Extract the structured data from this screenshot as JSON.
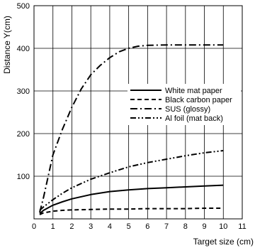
{
  "chart_data": {
    "type": "line",
    "title": "",
    "xlabel": "Target size (cm)",
    "ylabel": "Distance Y(cm)",
    "xlim": [
      0,
      11
    ],
    "ylim": [
      0,
      500
    ],
    "x_ticks": [
      0,
      1,
      2,
      3,
      4,
      5,
      6,
      7,
      8,
      9,
      10,
      11
    ],
    "y_ticks": [
      100,
      200,
      300,
      400,
      500
    ],
    "grid": true,
    "legend_position": "right, middle",
    "series": [
      {
        "name": "White mat paper",
        "style": "solid",
        "x": [
          0.3,
          0.5,
          1,
          1.5,
          2,
          3,
          4,
          5,
          6,
          7,
          8,
          9,
          10
        ],
        "y": [
          12,
          20,
          32,
          40,
          47,
          57,
          64,
          68,
          71,
          73,
          75,
          77,
          79
        ]
      },
      {
        "name": "Black carbon paper",
        "style": "dashed",
        "x": [
          0.3,
          0.5,
          1,
          1.5,
          2,
          3,
          4,
          5,
          6,
          7,
          8,
          9,
          10
        ],
        "y": [
          10,
          14,
          18,
          20,
          21,
          22,
          23,
          23,
          24,
          24,
          24,
          25,
          25
        ]
      },
      {
        "name": "SUS (glossy)",
        "style": "dashdot",
        "x": [
          0.3,
          0.5,
          1,
          1.5,
          2,
          2.5,
          3,
          3.5,
          4,
          4.5,
          5,
          5.5,
          6,
          7,
          8,
          9,
          10
        ],
        "y": [
          15,
          50,
          150,
          210,
          262,
          305,
          338,
          360,
          378,
          392,
          400,
          405,
          407,
          408,
          408,
          408,
          408
        ]
      },
      {
        "name": "Al foil (mat back)",
        "style": "dashdotdot",
        "x": [
          0.3,
          0.5,
          1,
          1.5,
          2,
          3,
          4,
          5,
          6,
          7,
          8,
          9,
          10
        ],
        "y": [
          20,
          28,
          45,
          60,
          73,
          93,
          108,
          122,
          132,
          140,
          148,
          155,
          160
        ]
      }
    ]
  }
}
